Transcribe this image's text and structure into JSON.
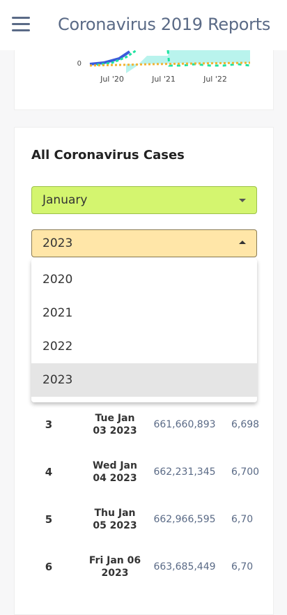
{
  "header": {
    "title": "Coronavirus 2019 Reports"
  },
  "chart_data": {
    "type": "line",
    "x_ticks": [
      "Jul '20",
      "Jul '21",
      "Jul '22"
    ],
    "y_ticks": [
      "0"
    ],
    "colors": {
      "series_a": "#3b5bdb",
      "series_b": "#20e3a0",
      "series_c": "#f2b233",
      "area": "#a8f0e8"
    }
  },
  "cases": {
    "title": "All Coronavirus Cases",
    "month_value": "January",
    "year_value": "2023",
    "year_options": [
      "2020",
      "2021",
      "2022",
      "2023"
    ],
    "selected_year_index": 3,
    "rows": [
      {
        "num": "3",
        "date_line1": "Tue Jan",
        "date_line2": "03 2023",
        "total": "661,660,893",
        "deaths": "6,698"
      },
      {
        "num": "4",
        "date_line1": "Wed Jan",
        "date_line2": "04 2023",
        "total": "662,231,345",
        "deaths": "6,700"
      },
      {
        "num": "5",
        "date_line1": "Thu Jan",
        "date_line2": "05 2023",
        "total": "662,966,595",
        "deaths": "6,70"
      },
      {
        "num": "6",
        "date_line1": "Fri Jan 06",
        "date_line2": "2023",
        "total": "663,685,449",
        "deaths": "6,70"
      }
    ]
  }
}
